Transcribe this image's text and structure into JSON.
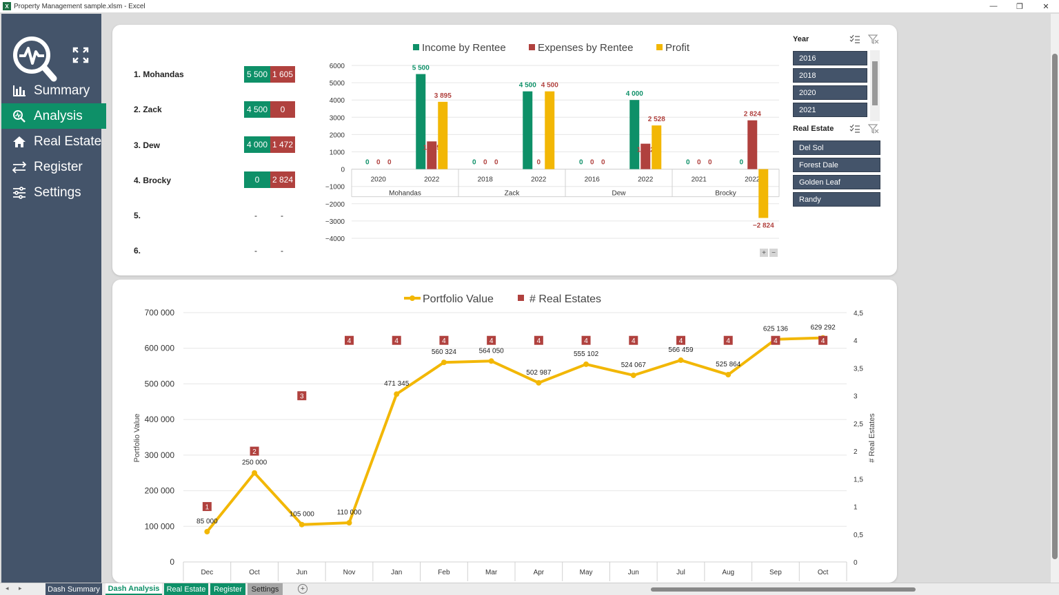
{
  "window": {
    "title": "Property Management sample.xlsm - Excel",
    "minimize": "—",
    "restore": "❐",
    "close": "✕"
  },
  "sidebar": {
    "items": [
      {
        "label": "Summary",
        "icon": "bar-chart-icon"
      },
      {
        "label": "Analysis",
        "icon": "search-analytics-icon"
      },
      {
        "label": "Real Estate",
        "icon": "home-icon"
      },
      {
        "label": "Register",
        "icon": "transfer-arrows-icon"
      },
      {
        "label": "Settings",
        "icon": "sliders-icon"
      }
    ],
    "active_index": 1,
    "active_color": "#0e9068",
    "bg_color": "#44546a"
  },
  "rentees": [
    {
      "rank": "1. Mohandas",
      "income": "5 500",
      "expenses": "1 605"
    },
    {
      "rank": "2. Zack",
      "income": "4 500",
      "expenses": "0"
    },
    {
      "rank": "3. Dew",
      "income": "4 000",
      "expenses": "1 472"
    },
    {
      "rank": "4. Brocky",
      "income": "0",
      "expenses": "2 824"
    },
    {
      "rank": "5.",
      "income": "-",
      "expenses": "-"
    },
    {
      "rank": "6.",
      "income": "-",
      "expenses": "-"
    }
  ],
  "slicers": {
    "year": {
      "title": "Year",
      "items": [
        "2016",
        "2018",
        "2020",
        "2021"
      ]
    },
    "real_estate": {
      "title": "Real Estate",
      "items": [
        "Del Sol",
        "Forest Dale",
        "Golden Leaf",
        "Randy"
      ]
    }
  },
  "chart_data": [
    {
      "type": "bar",
      "legend": [
        "Income by Rentee",
        "Expenses by Rentee",
        "Profit"
      ],
      "colors": [
        "#0e9068",
        "#b0413e",
        "#f2b705"
      ],
      "legend_position": "top",
      "ylim": [
        -4000,
        6000
      ],
      "yticks": [
        "6000",
        "5000",
        "4000",
        "3000",
        "2000",
        "1000",
        "0",
        "−1000",
        "−2000",
        "−3000",
        "−4000"
      ],
      "groups": [
        {
          "name": "Mohandas",
          "years": [
            "2020",
            "2022"
          ]
        },
        {
          "name": "Zack",
          "years": [
            "2018",
            "2022"
          ]
        },
        {
          "name": "Dew",
          "years": [
            "2016",
            "2022"
          ]
        },
        {
          "name": "Brocky",
          "years": [
            "2021",
            "2022"
          ]
        }
      ],
      "series": [
        {
          "name": "Income by Rentee",
          "values": [
            0,
            5500,
            0,
            4500,
            0,
            4000,
            0,
            0
          ],
          "labels": [
            "0",
            "5 500",
            "0",
            "4 500",
            "0",
            "4 000",
            "0",
            "0"
          ]
        },
        {
          "name": "Expenses by Rentee",
          "values": [
            0,
            1605,
            0,
            0,
            0,
            1472,
            0,
            2824
          ],
          "labels": [
            "0",
            "1 605",
            "0",
            "0",
            "0",
            "1 472",
            "0",
            "2 824"
          ]
        },
        {
          "name": "Profit",
          "values": [
            0,
            3895,
            0,
            4500,
            0,
            2528,
            0,
            -2824
          ],
          "labels": [
            "0",
            "3 895",
            "0",
            "4 500",
            "0",
            "2 528",
            "0",
            "−2 824"
          ]
        }
      ]
    },
    {
      "type": "line",
      "legend": [
        "Portfolio Value",
        "# Real Estates"
      ],
      "colors": [
        "#f2b705",
        "#b0413e"
      ],
      "legend_position": "top",
      "categories": [
        "Dec",
        "Oct",
        "Jun",
        "Nov",
        "Jan",
        "Feb",
        "Mar",
        "Apr",
        "May",
        "Jun",
        "Jul",
        "Aug",
        "Sep",
        "Oct"
      ],
      "ylabel": "Portfolio Value",
      "y2label": "# Real Estates",
      "ylim": [
        0,
        700000
      ],
      "y2lim": [
        0,
        4.5
      ],
      "yticks": [
        "700 000",
        "600 000",
        "500 000",
        "400 000",
        "300 000",
        "200 000",
        "100 000",
        "0"
      ],
      "y2ticks": [
        "4,5",
        "4",
        "3,5",
        "3",
        "2,5",
        "2",
        "1,5",
        "1",
        "0,5",
        "0"
      ],
      "series": [
        {
          "name": "Portfolio Value",
          "values": [
            85000,
            250000,
            105000,
            110000,
            471345,
            560324,
            564050,
            502987,
            555102,
            524067,
            566459,
            525864,
            625136,
            629292
          ],
          "labels": [
            "85 000",
            "250 000",
            "105 000",
            "110 000",
            "471 345",
            "560 324",
            "564 050",
            "502 987",
            "555 102",
            "524 067",
            "566 459",
            "525 864",
            "625 136",
            "629 292"
          ]
        },
        {
          "name": "# Real Estates",
          "values": [
            1,
            2,
            3,
            4,
            4,
            4,
            4,
            4,
            4,
            4,
            4,
            4,
            4,
            4
          ],
          "labels": [
            "1",
            "2",
            "3",
            "4",
            "4",
            "4",
            "4",
            "4",
            "4",
            "4",
            "4",
            "4",
            "4",
            "4"
          ]
        }
      ]
    }
  ],
  "sheet_tabs": [
    {
      "label": "Dash Summary",
      "color": "#44546a"
    },
    {
      "label": "Dash Analysis",
      "color": "#0e9068",
      "active": true
    },
    {
      "label": "Real Estate",
      "color": "#0e9068"
    },
    {
      "label": "Register",
      "color": "#0e9068"
    },
    {
      "label": "Settings",
      "color": "#a6a6a6"
    }
  ],
  "sheet_nav": "◂ ▸",
  "add_sheet": "+",
  "zoom": {
    "plus": "+",
    "minus": "−"
  }
}
